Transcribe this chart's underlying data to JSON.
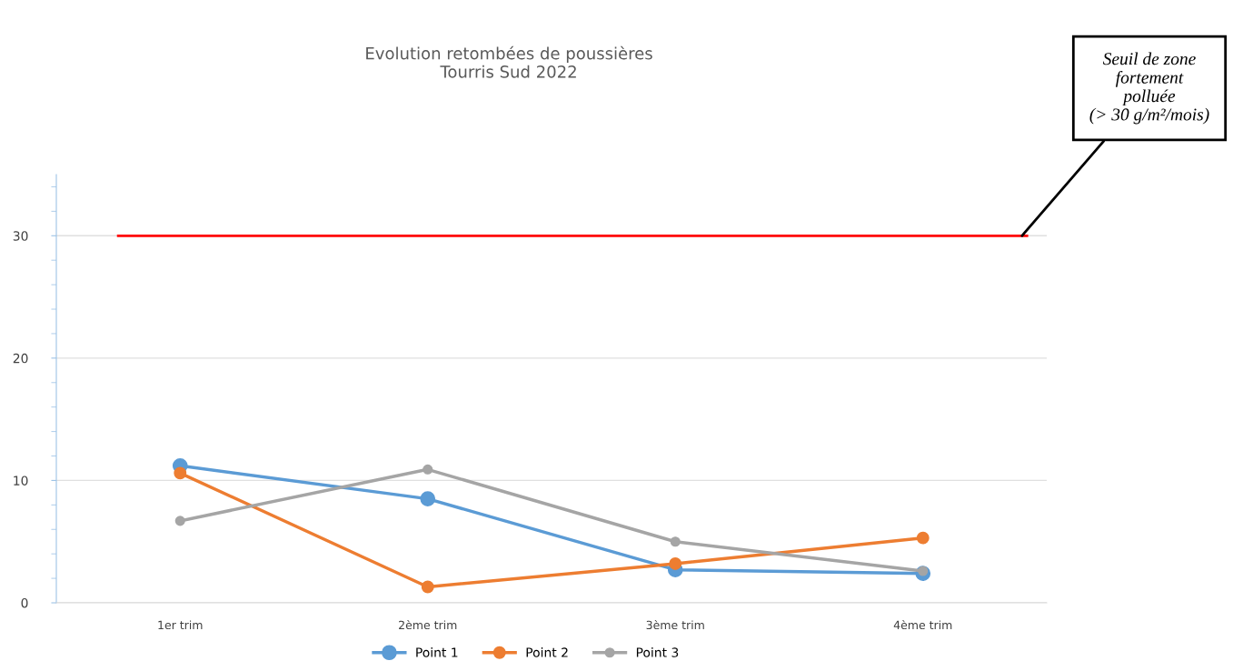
{
  "chart_data": {
    "type": "line",
    "title": "Evolution retombées de poussières\nTourris Sud 2022",
    "categories": [
      "1er trim",
      "2ème trim",
      "3ème trim",
      "4ème trim"
    ],
    "series": [
      {
        "name": "Point 1",
        "color": "#5b9bd5",
        "values": [
          11.2,
          8.5,
          2.7,
          2.4
        ]
      },
      {
        "name": "Point 2",
        "color": "#ed7d31",
        "values": [
          10.6,
          1.3,
          3.2,
          5.3
        ]
      },
      {
        "name": "Point 3",
        "color": "#a5a5a5",
        "values": [
          6.7,
          10.9,
          5.0,
          2.6
        ]
      }
    ],
    "ylim": [
      0,
      35
    ],
    "yticks": [
      0,
      10,
      20,
      30
    ],
    "grid": "y",
    "legend": "bottom",
    "marker": "circle",
    "line_style": "solid",
    "ref_lines": [
      {
        "axis": "y",
        "value": 30,
        "label": "Seuil de zone\nfortement\npolluée\n(> 30 g/m²/mois)",
        "color": "#ff0000",
        "line_style": "solid"
      }
    ]
  }
}
